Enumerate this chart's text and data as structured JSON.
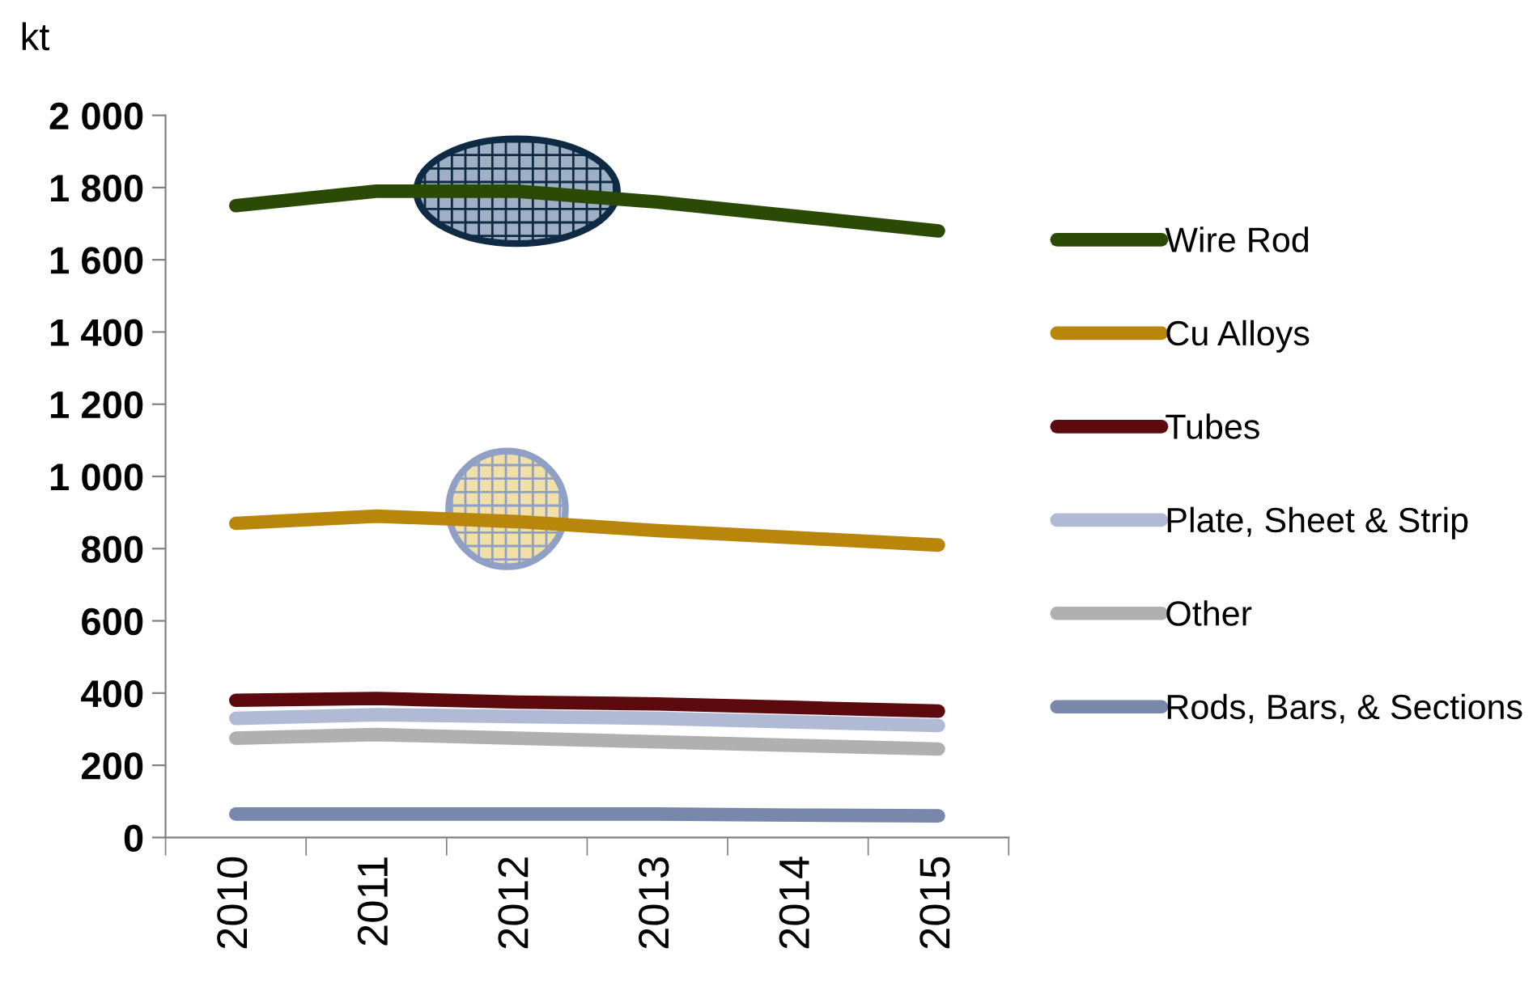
{
  "chart_data": {
    "type": "line",
    "ylabel": "kt",
    "categories": [
      "2010",
      "2011",
      "2012",
      "2013",
      "2014",
      "2015"
    ],
    "series": [
      {
        "name": "Wire Rod",
        "color": "#2b4a05",
        "values": [
          1750,
          1790,
          1790,
          1760,
          1720,
          1680
        ]
      },
      {
        "name": "Cu Alloys",
        "color": "#b8860b",
        "values": [
          870,
          890,
          875,
          850,
          830,
          810
        ]
      },
      {
        "name": "Tubes",
        "color": "#5c0a0e",
        "values": [
          380,
          385,
          375,
          370,
          360,
          350
        ]
      },
      {
        "name": "Plate, Sheet & Strip",
        "color": "#b0bad4",
        "values": [
          330,
          340,
          335,
          330,
          320,
          310
        ]
      },
      {
        "name": "Other",
        "color": "#b0b0b0",
        "values": [
          275,
          285,
          275,
          265,
          255,
          245
        ]
      },
      {
        "name": "Rods, Bars, & Sections",
        "color": "#7888aa",
        "values": [
          65,
          65,
          65,
          65,
          62,
          60
        ]
      }
    ],
    "ylim": [
      0,
      2000
    ],
    "yticks": [
      0,
      200,
      400,
      600,
      800,
      {
        "value": 1000,
        "label": "1 000"
      },
      {
        "value": 1200,
        "label": "1 200"
      },
      {
        "value": 1400,
        "label": "1 400"
      },
      {
        "value": 1600,
        "label": "1 600"
      },
      {
        "value": 1800,
        "label": "1 800"
      },
      {
        "value": 2000,
        "label": "2 000"
      }
    ],
    "grid": false,
    "legend": "right",
    "marker": "none",
    "line_style": "solid"
  }
}
